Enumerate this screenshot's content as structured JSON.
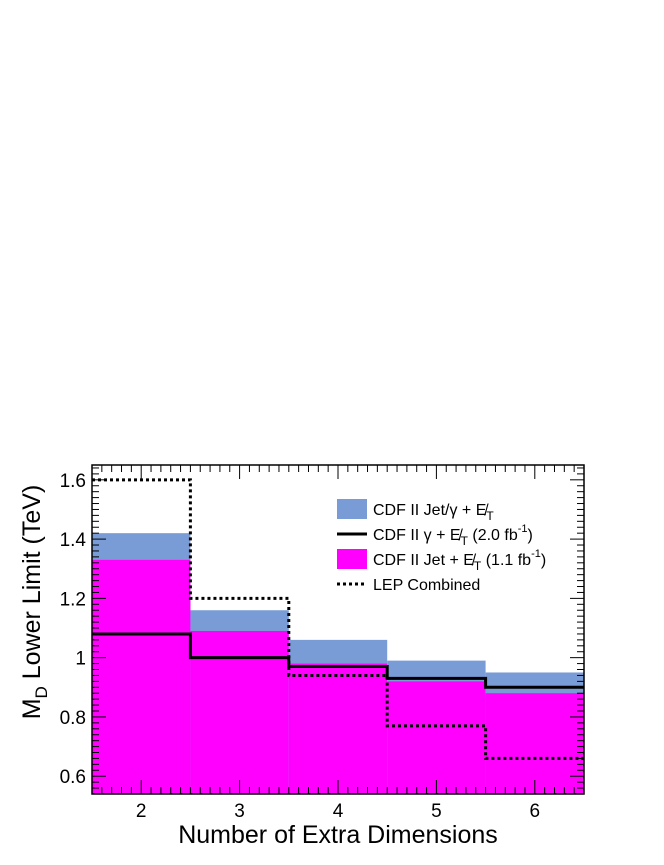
{
  "chart_data": {
    "type": "bar",
    "xlabel": "Number of Extra Dimensions",
    "ylabel": {
      "main": "M",
      "sub": "D",
      "rest": " Lower Limit (TeV)"
    },
    "x": [
      2,
      3,
      4,
      5,
      6
    ],
    "xticklabels": [
      "2",
      "3",
      "4",
      "5",
      "6"
    ],
    "xlim": [
      1.5,
      6.5
    ],
    "ylim": [
      0.54,
      1.65
    ],
    "yticks": [
      0.6,
      0.8,
      1,
      1.2,
      1.4,
      1.6
    ],
    "yticklabels": [
      "0.6",
      "0.8",
      "1",
      "1.2",
      "1.4",
      "1.6"
    ],
    "legend_position": "top-right",
    "series": [
      {
        "name": "CDF II Jet/γ + E̸T",
        "style": "fill",
        "color": "#7a9cd6",
        "values": [
          1.42,
          1.16,
          1.06,
          0.99,
          0.95
        ]
      },
      {
        "name": "CDF II Jet + E̸T (1.1 fb-1)",
        "style": "fill",
        "color": "#ff00ff",
        "values": [
          1.33,
          1.09,
          0.98,
          0.92,
          0.88
        ]
      },
      {
        "name": "CDF II γ + E̸T  (2.0 fb-1)",
        "style": "solid",
        "color": "#000000",
        "values": [
          1.08,
          1.0,
          0.97,
          0.93,
          0.9
        ]
      },
      {
        "name": "LEP Combined",
        "style": "dotted",
        "color": "#000000",
        "values": [
          1.6,
          1.2,
          0.94,
          0.77,
          0.66
        ]
      }
    ],
    "legend": [
      {
        "series": 0,
        "parts": [
          "CDF II Jet/γ + ",
          "E̸",
          "T",
          ""
        ],
        "sup": ""
      },
      {
        "series": 2,
        "parts": [
          "CDF II γ + ",
          "E̸",
          "T",
          "  (2.0 fb"
        ],
        "sup": "-1",
        "tail": ")"
      },
      {
        "series": 1,
        "parts": [
          "CDF II Jet + ",
          "E̸",
          "T",
          " (1.1 fb"
        ],
        "sup": "-1",
        "tail": ")"
      },
      {
        "series": 3,
        "parts": [
          "LEP Combined",
          "",
          "",
          ""
        ],
        "sup": ""
      }
    ]
  }
}
